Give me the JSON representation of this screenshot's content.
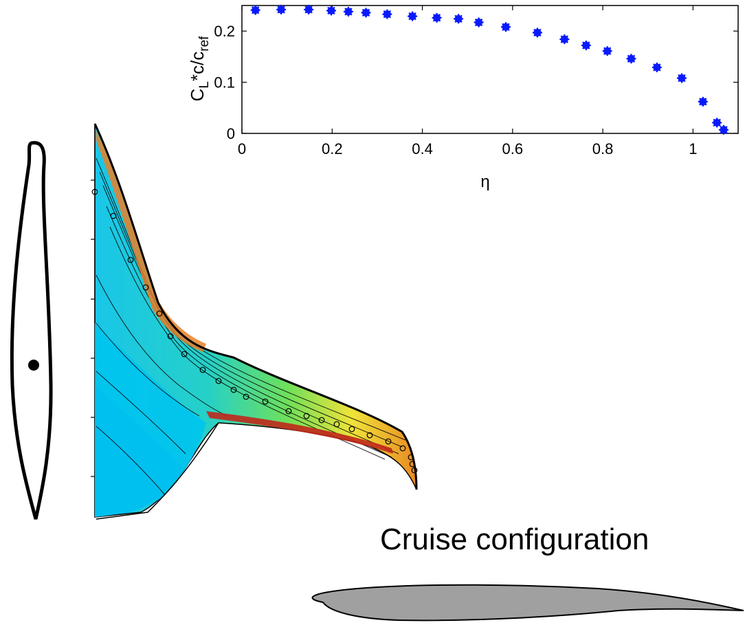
{
  "caption": "Cruise configuration",
  "colors": {
    "marker": "#0a1aff",
    "airfoil_fill": "#a0a0a0"
  },
  "chart_data": {
    "type": "scatter",
    "title": "",
    "xlabel": "η",
    "ylabel_parts": {
      "base": "C",
      "sub1": "L",
      "mid": "*c/c",
      "sub2": "ref"
    },
    "xlim": [
      0,
      1.1
    ],
    "ylim": [
      0,
      0.25
    ],
    "xticks": [
      0,
      0.2,
      0.4,
      0.6,
      0.8,
      1
    ],
    "xtick_labels": [
      "0",
      "0.2",
      "0.4",
      "0.6",
      "0.8",
      "1"
    ],
    "yticks": [
      0,
      0.1,
      0.2
    ],
    "ytick_labels": [
      "0",
      "0.1",
      "0.2"
    ],
    "grid": false,
    "series": [
      {
        "x": [
          0.03,
          0.087,
          0.148,
          0.198,
          0.236,
          0.275,
          0.322,
          0.378,
          0.432,
          0.48,
          0.525,
          0.585,
          0.655,
          0.715,
          0.763,
          0.81,
          0.863,
          0.92,
          0.975,
          1.022,
          1.053,
          1.068
        ],
        "y": [
          0.241,
          0.242,
          0.242,
          0.24,
          0.238,
          0.236,
          0.233,
          0.229,
          0.226,
          0.224,
          0.217,
          0.208,
          0.197,
          0.184,
          0.172,
          0.161,
          0.146,
          0.129,
          0.108,
          0.062,
          0.021,
          0.007
        ]
      }
    ]
  }
}
